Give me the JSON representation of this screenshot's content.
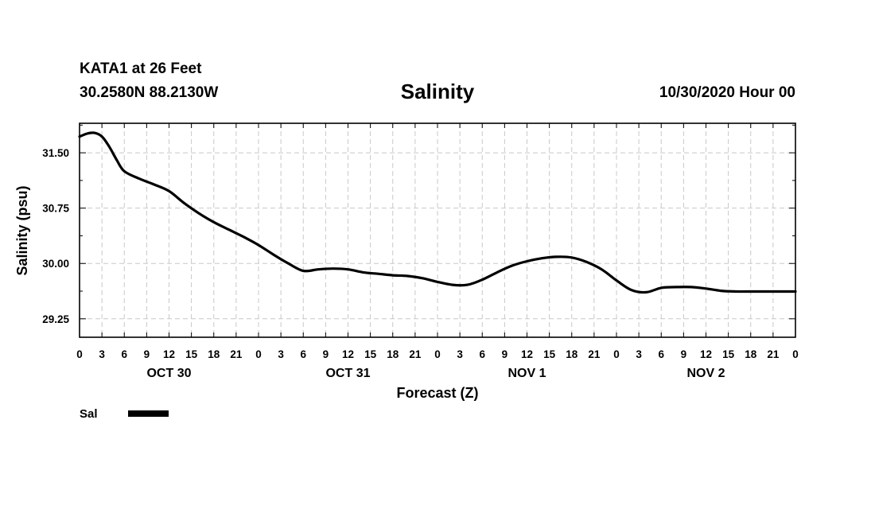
{
  "header": {
    "station": "KATA1 at 26 Feet",
    "coords": "30.2580N 88.2130W",
    "date": "10/30/2020 Hour 00"
  },
  "chart_data": {
    "type": "line",
    "title": "Salinity",
    "xlabel": "Forecast (Z)",
    "ylabel": "Salinity (psu)",
    "xlim": [
      0,
      96
    ],
    "ylim": [
      29.0,
      31.9
    ],
    "x_tick_labels": [
      "0",
      "3",
      "6",
      "9",
      "12",
      "15",
      "18",
      "21",
      "0",
      "3",
      "6",
      "9",
      "12",
      "15",
      "18",
      "21",
      "0",
      "3",
      "6",
      "9",
      "12",
      "15",
      "18",
      "21",
      "0",
      "3",
      "6",
      "9",
      "12",
      "15",
      "18",
      "21",
      "0"
    ],
    "y_ticks": [
      29.25,
      30.0,
      30.75,
      31.5
    ],
    "y_tick_labels": [
      "29.25",
      "30.00",
      "30.75",
      "31.50"
    ],
    "day_labels": [
      {
        "label": "OCT 30",
        "hour": 12
      },
      {
        "label": "OCT 31",
        "hour": 36
      },
      {
        "label": "NOV 1",
        "hour": 60
      },
      {
        "label": "NOV 2",
        "hour": 84
      }
    ],
    "grid": true,
    "series": [
      {
        "name": "Sal",
        "color": "#000000",
        "x": [
          0,
          1,
          2,
          3,
          4,
          5,
          6,
          8,
          10,
          12,
          14,
          16,
          18,
          20,
          22,
          24,
          26,
          28,
          30,
          32,
          34,
          36,
          38,
          40,
          42,
          44,
          46,
          48,
          50,
          52,
          54,
          56,
          58,
          60,
          62,
          64,
          66,
          68,
          70,
          72,
          74,
          76,
          78,
          80,
          82,
          84,
          86,
          88,
          90,
          92,
          94,
          96
        ],
        "values": [
          31.72,
          31.76,
          31.77,
          31.72,
          31.58,
          31.4,
          31.25,
          31.15,
          31.07,
          30.98,
          30.82,
          30.68,
          30.56,
          30.46,
          30.36,
          30.25,
          30.12,
          30.0,
          29.9,
          29.92,
          29.93,
          29.92,
          29.88,
          29.86,
          29.84,
          29.83,
          29.8,
          29.75,
          29.71,
          29.71,
          29.78,
          29.88,
          29.97,
          30.03,
          30.07,
          30.09,
          30.08,
          30.02,
          29.92,
          29.77,
          29.64,
          29.61,
          29.67,
          29.68,
          29.68,
          29.66,
          29.63,
          29.62,
          29.62,
          29.62,
          29.62,
          29.62
        ]
      }
    ]
  },
  "legend": {
    "items": [
      {
        "label": "Sal",
        "color": "#000000"
      }
    ]
  }
}
